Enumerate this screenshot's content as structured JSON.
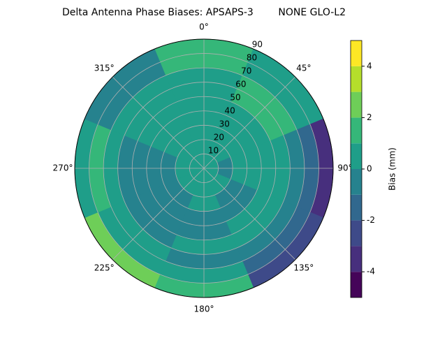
{
  "chart_data": {
    "type": "polar-contour",
    "title": "Delta Antenna Phase Biases: APSAPS-3        NONE GLO-L2",
    "theta": [
      0,
      45,
      90,
      135,
      180,
      225,
      270,
      315
    ],
    "r_edges": [
      0,
      10,
      20,
      30,
      40,
      50,
      60,
      70,
      80,
      90
    ],
    "z": [
      [
        0.5,
        0.5,
        0.5,
        0.5,
        0.5,
        0.5,
        0.5,
        0.5
      ],
      [
        0.5,
        0.5,
        -0.5,
        0.5,
        0.5,
        0.5,
        0.5,
        0.5
      ],
      [
        0.5,
        0.5,
        0.5,
        -0.5,
        0.5,
        -0.5,
        -0.5,
        0.5
      ],
      [
        0.5,
        0.5,
        0.5,
        -0.5,
        -0.5,
        -0.5,
        -0.5,
        0.5
      ],
      [
        0.5,
        0.5,
        0.5,
        0.5,
        -0.5,
        -0.5,
        -0.5,
        0.5
      ],
      [
        0.5,
        1.5,
        0.5,
        0.5,
        0.5,
        -0.5,
        -0.5,
        0.5
      ],
      [
        0.5,
        1.5,
        -0.5,
        -0.5,
        -0.5,
        0.5,
        0.5,
        0.5
      ],
      [
        1.5,
        0.5,
        -1.5,
        -1.5,
        0.5,
        0.5,
        1.5,
        -0.5
      ],
      [
        1.5,
        0.5,
        -3.5,
        -2.5,
        1.5,
        2.5,
        0.5,
        -0.5
      ]
    ],
    "rlim": [
      0,
      90
    ],
    "rticks": [
      10,
      20,
      30,
      40,
      50,
      60,
      70,
      80,
      90
    ],
    "thetaticks": [
      {
        "value": 0,
        "label": "0°"
      },
      {
        "value": 45,
        "label": "45°"
      },
      {
        "value": 90,
        "label": "90°"
      },
      {
        "value": 135,
        "label": "135°"
      },
      {
        "value": 180,
        "label": "180°"
      },
      {
        "value": 225,
        "label": "225°"
      },
      {
        "value": 270,
        "label": "270°"
      },
      {
        "value": 315,
        "label": "315°"
      }
    ],
    "levels": [
      -5,
      -4,
      -3,
      -2,
      -1,
      0,
      1,
      2,
      3,
      4,
      5
    ],
    "colors": [
      "#450559",
      "#472f7d",
      "#3e4a89",
      "#31688e",
      "#26828e",
      "#1f9e89",
      "#35b779",
      "#6ece58",
      "#b5de2b",
      "#fde725"
    ],
    "colorbar_label": "Bias (mm)",
    "clim": [
      -5,
      5
    ],
    "cticks": [
      -4,
      -2,
      0,
      2,
      4
    ],
    "grid": true
  }
}
